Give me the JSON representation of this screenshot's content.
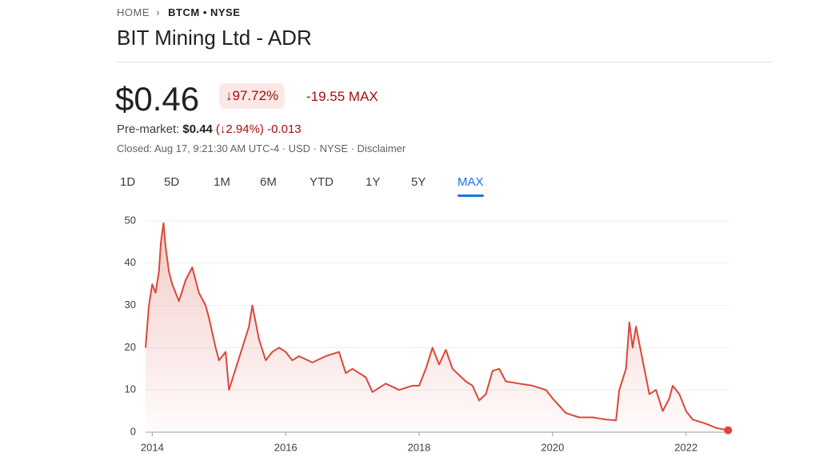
{
  "breadcrumb": {
    "home": "HOME",
    "ticker": "BTCM • NYSE"
  },
  "header": {
    "title": "BIT Mining Ltd - ADR",
    "price": "$0.46",
    "change_pct": "↓97.72%",
    "change_abs": "-19.55 MAX"
  },
  "premarket": {
    "label": "Pre-market:",
    "price": "$0.44",
    "change_pct": "(↓2.94%)",
    "change_abs": "-0.013"
  },
  "status": "Closed: Aug 17, 9:21:30 AM UTC-4 · USD · NYSE · Disclaimer",
  "tabs": [
    "1D",
    "5D",
    "1M",
    "6M",
    "YTD",
    "1Y",
    "5Y",
    "MAX"
  ],
  "active_tab": "MAX",
  "chart_data": {
    "type": "line",
    "color": "#d9483b",
    "x": [
      2013.9,
      2013.95,
      2014.0,
      2014.05,
      2014.1,
      2014.13,
      2014.17,
      2014.2,
      2014.25,
      2014.3,
      2014.4,
      2014.5,
      2014.6,
      2014.7,
      2014.8,
      2014.85,
      2014.95,
      2015.0,
      2015.1,
      2015.15,
      2015.25,
      2015.35,
      2015.45,
      2015.5,
      2015.6,
      2015.7,
      2015.8,
      2015.9,
      2016.0,
      2016.1,
      2016.2,
      2016.4,
      2016.6,
      2016.8,
      2016.9,
      2017.0,
      2017.2,
      2017.3,
      2017.5,
      2017.7,
      2017.9,
      2018.0,
      2018.1,
      2018.2,
      2018.3,
      2018.4,
      2018.5,
      2018.7,
      2018.8,
      2018.9,
      2019.0,
      2019.1,
      2019.2,
      2019.3,
      2019.5,
      2019.7,
      2019.9,
      2020.0,
      2020.2,
      2020.4,
      2020.6,
      2020.8,
      2020.95,
      2021.0,
      2021.1,
      2021.15,
      2021.2,
      2021.25,
      2021.35,
      2021.45,
      2021.55,
      2021.65,
      2021.75,
      2021.8,
      2021.9,
      2022.0,
      2022.1,
      2022.3,
      2022.45,
      2022.63
    ],
    "values": [
      20,
      30,
      35,
      33,
      38,
      45,
      49.5,
      44,
      38,
      35,
      31,
      36,
      39,
      33,
      30,
      27,
      20,
      17,
      19,
      10,
      15,
      20,
      25,
      30,
      22,
      17,
      19,
      20,
      19,
      17,
      18,
      16.5,
      18,
      19,
      14,
      15,
      13,
      9.5,
      11.5,
      10,
      11,
      11,
      15,
      20,
      16,
      19.5,
      15,
      12,
      11,
      7.5,
      9,
      14.5,
      15,
      12,
      11.5,
      11,
      10,
      8,
      4.5,
      3.5,
      3.5,
      3,
      2.8,
      10,
      15,
      26,
      20,
      25,
      17,
      9,
      10,
      5,
      8,
      11,
      9,
      5,
      3,
      2,
      1,
      0.46
    ],
    "xlim": [
      2013.9,
      2022.65
    ],
    "ylim": [
      0,
      50
    ],
    "xticks": [
      2014,
      2016,
      2018,
      2020,
      2022
    ],
    "yticks": [
      0,
      10,
      20,
      30,
      40,
      50
    ],
    "grid": true
  }
}
